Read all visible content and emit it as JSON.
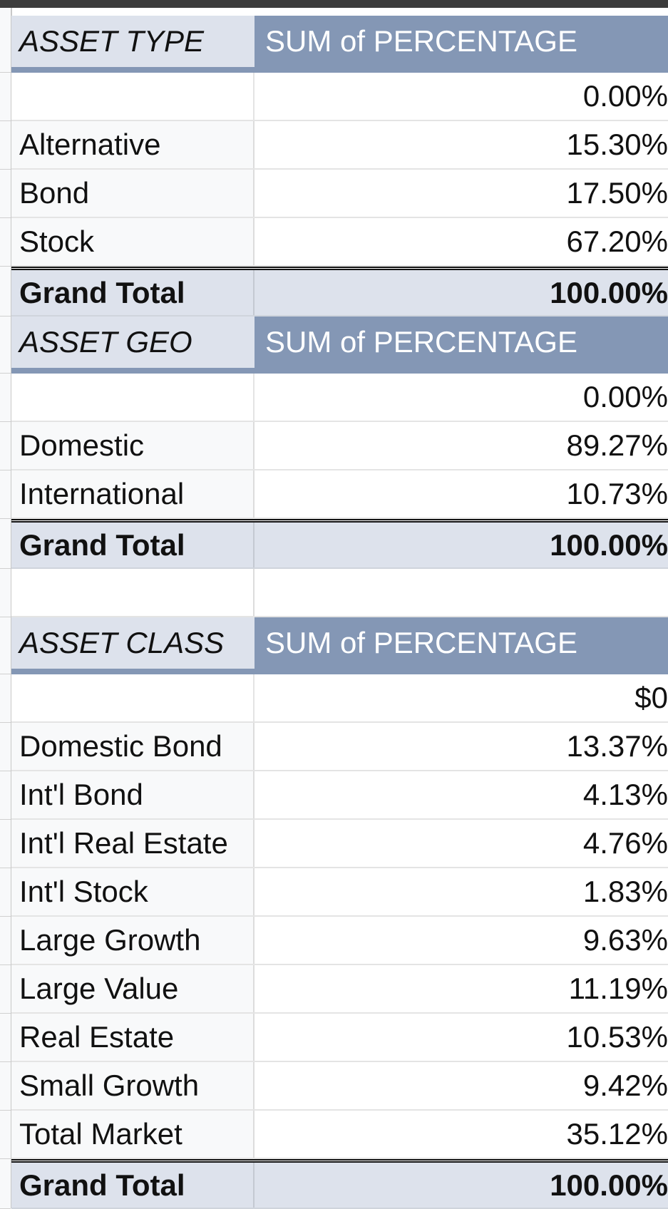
{
  "colors": {
    "header_dark": "#8497b5",
    "header_light": "#dde2ec",
    "total_fill": "#dde2ec",
    "top_bar": "#3c3c3c"
  },
  "tables": [
    {
      "id": "asset-type",
      "header_label": "ASSET TYPE",
      "header_value": "SUM of PERCENTAGE",
      "rows": [
        {
          "label": "",
          "value": "0.00%"
        },
        {
          "label": "Alternative",
          "value": "15.30%"
        },
        {
          "label": "Bond",
          "value": "17.50%"
        },
        {
          "label": "Stock",
          "value": "67.20%"
        }
      ],
      "total_label": "Grand Total",
      "total_value": "100.00%"
    },
    {
      "id": "asset-geo",
      "header_label": "ASSET GEO",
      "header_value": "SUM of PERCENTAGE",
      "rows": [
        {
          "label": "",
          "value": "0.00%"
        },
        {
          "label": "Domestic",
          "value": "89.27%"
        },
        {
          "label": "International",
          "value": "10.73%"
        }
      ],
      "total_label": "Grand Total",
      "total_value": "100.00%"
    },
    {
      "id": "asset-class",
      "header_label": "ASSET CLASS",
      "header_value": "SUM of PERCENTAGE",
      "rows": [
        {
          "label": "",
          "value": "$0"
        },
        {
          "label": "Domestic Bond",
          "value": "13.37%"
        },
        {
          "label": "Int'l Bond",
          "value": "4.13%"
        },
        {
          "label": "Int'l Real Estate",
          "value": "4.76%"
        },
        {
          "label": "Int'l Stock",
          "value": "1.83%"
        },
        {
          "label": "Large Growth",
          "value": "9.63%"
        },
        {
          "label": "Large Value",
          "value": "11.19%"
        },
        {
          "label": "Real Estate",
          "value": "10.53%"
        },
        {
          "label": "Small Growth",
          "value": "9.42%"
        },
        {
          "label": "Total Market",
          "value": "35.12%"
        }
      ],
      "total_label": "Grand Total",
      "total_value": "100.00%"
    }
  ]
}
